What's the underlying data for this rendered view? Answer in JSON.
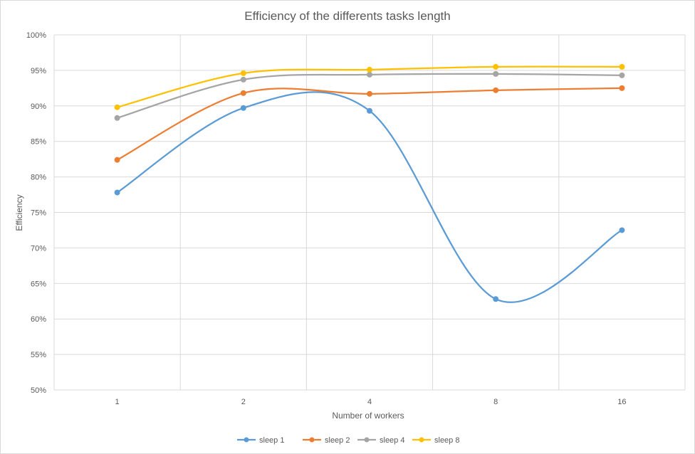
{
  "chart_data": {
    "type": "line",
    "title": "Efficiency of the differents tasks length",
    "xlabel": "Number  of workers",
    "ylabel": "Efficiency",
    "categories": [
      "1",
      "2",
      "4",
      "8",
      "16"
    ],
    "ylim": [
      0.5,
      1.0
    ],
    "yticks": [
      "50%",
      "55%",
      "60%",
      "65%",
      "70%",
      "75%",
      "80%",
      "85%",
      "90%",
      "95%",
      "100%"
    ],
    "grid": true,
    "smooth": true,
    "legend_position": "bottom",
    "series": [
      {
        "name": "sleep 1",
        "color": "#5b9bd5",
        "values": [
          0.778,
          0.897,
          0.893,
          0.628,
          0.725
        ]
      },
      {
        "name": "sleep 2",
        "color": "#ed7d31",
        "values": [
          0.824,
          0.918,
          0.917,
          0.922,
          0.925
        ]
      },
      {
        "name": "sleep 4",
        "color": "#a5a5a5",
        "values": [
          0.883,
          0.937,
          0.944,
          0.945,
          0.943
        ]
      },
      {
        "name": "sleep 8",
        "color": "#ffc000",
        "values": [
          0.898,
          0.946,
          0.951,
          0.955,
          0.955
        ]
      }
    ]
  }
}
